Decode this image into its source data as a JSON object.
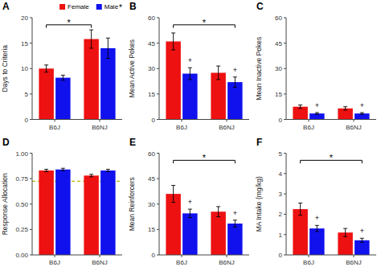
{
  "chart_data": [
    {
      "type": "bar",
      "title": "A",
      "y_label": "Days to Criteria",
      "categories": [
        "B6J",
        "B6NJ"
      ],
      "series": [
        {
          "name": "Female",
          "color": "#ee1111",
          "values": [
            10.0,
            15.8
          ],
          "errors": [
            0.7,
            1.8
          ]
        },
        {
          "name": "Male",
          "color": "#1111ee",
          "values": [
            8.2,
            14.0
          ],
          "errors": [
            0.5,
            2.0
          ]
        }
      ],
      "ylim": [
        0,
        20
      ],
      "yticks": [
        0,
        5,
        10,
        15,
        20
      ],
      "legend": "upper right",
      "annotations": [
        {
          "kind": "bracket",
          "text": "*",
          "from": [
            "B6J",
            "Female"
          ],
          "to": [
            "B6NJ",
            "Female"
          ]
        },
        {
          "kind": "legend_mark",
          "text": "*",
          "series": "Male"
        }
      ]
    },
    {
      "type": "bar",
      "title": "B",
      "y_label": "Mean Active Pokes",
      "categories": [
        "B6J",
        "B6NJ"
      ],
      "series": [
        {
          "name": "Female",
          "color": "#ee1111",
          "values": [
            46.0,
            27.5
          ],
          "errors": [
            5.0,
            4.0
          ]
        },
        {
          "name": "Male",
          "color": "#1111ee",
          "values": [
            27.0,
            22.0
          ],
          "errors": [
            3.5,
            3.0
          ]
        }
      ],
      "ylim": [
        0,
        60
      ],
      "yticks": [
        0,
        15,
        30,
        45,
        60
      ],
      "annotations": [
        {
          "kind": "bracket",
          "text": "*",
          "from": [
            "B6J",
            "Female"
          ],
          "to": [
            "B6NJ",
            "Male"
          ]
        },
        {
          "kind": "marker",
          "text": "+",
          "at": [
            "B6J",
            "Male"
          ]
        },
        {
          "kind": "marker",
          "text": "+",
          "at": [
            "B6NJ",
            "Male"
          ]
        }
      ]
    },
    {
      "type": "bar",
      "title": "C",
      "y_label": "Mean Inactive Pokes",
      "categories": [
        "B6J",
        "B6NJ"
      ],
      "series": [
        {
          "name": "Female",
          "color": "#ee1111",
          "values": [
            7.5,
            6.5
          ],
          "errors": [
            1.0,
            1.0
          ]
        },
        {
          "name": "Male",
          "color": "#1111ee",
          "values": [
            3.5,
            3.5
          ],
          "errors": [
            0.5,
            0.5
          ]
        }
      ],
      "ylim": [
        0,
        60
      ],
      "yticks": [
        0,
        15,
        30,
        45,
        60
      ],
      "annotations": [
        {
          "kind": "marker",
          "text": "+",
          "at": [
            "B6J",
            "Male"
          ]
        },
        {
          "kind": "marker",
          "text": "+",
          "at": [
            "B6NJ",
            "Male"
          ]
        }
      ]
    },
    {
      "type": "bar",
      "title": "D",
      "y_label": "Response Allocation",
      "categories": [
        "B6J",
        "B6NJ"
      ],
      "series": [
        {
          "name": "Female",
          "color": "#ee1111",
          "values": [
            0.83,
            0.78
          ],
          "errors": [
            0.012,
            0.012
          ]
        },
        {
          "name": "Male",
          "color": "#1111ee",
          "values": [
            0.84,
            0.83
          ],
          "errors": [
            0.012,
            0.012
          ]
        }
      ],
      "ylim": [
        0.0,
        1.0
      ],
      "yticks": [
        {
          "value": 0.0,
          "label": "0.00"
        },
        0.25,
        {
          "value": 0.5,
          "label": "0.50"
        },
        0.75,
        {
          "value": 1.0,
          "label": "1.00"
        }
      ],
      "annotations": [
        {
          "kind": "hline",
          "value": 0.725,
          "color": "#b8b800",
          "line_style": "dashed"
        }
      ]
    },
    {
      "type": "bar",
      "title": "E",
      "y_label": "Mean Reinforcers",
      "categories": [
        "B6J",
        "B6NJ"
      ],
      "series": [
        {
          "name": "Female",
          "color": "#ee1111",
          "values": [
            36.0,
            25.5
          ],
          "errors": [
            5.0,
            3.0
          ]
        },
        {
          "name": "Male",
          "color": "#1111ee",
          "values": [
            24.5,
            18.5
          ],
          "errors": [
            2.5,
            2.0
          ]
        }
      ],
      "ylim": [
        0,
        60
      ],
      "yticks": [
        0,
        15,
        30,
        45,
        60
      ],
      "annotations": [
        {
          "kind": "bracket",
          "text": "*",
          "from": [
            "B6J",
            "Female"
          ],
          "to": [
            "B6NJ",
            "Male"
          ]
        },
        {
          "kind": "marker",
          "text": "+",
          "at": [
            "B6J",
            "Male"
          ]
        },
        {
          "kind": "marker",
          "text": "+",
          "at": [
            "B6NJ",
            "Male"
          ]
        }
      ]
    },
    {
      "type": "bar",
      "title": "F",
      "y_label": "MA Intake (mg/kg)",
      "categories": [
        "B6J",
        "B6NJ"
      ],
      "series": [
        {
          "name": "Female",
          "color": "#ee1111",
          "values": [
            2.25,
            1.1
          ],
          "errors": [
            0.3,
            0.2
          ]
        },
        {
          "name": "Male",
          "color": "#1111ee",
          "values": [
            1.3,
            0.72
          ],
          "errors": [
            0.15,
            0.1
          ]
        }
      ],
      "ylim": [
        0,
        5
      ],
      "yticks": [
        0,
        1,
        2,
        3,
        4,
        5
      ],
      "annotations": [
        {
          "kind": "bracket",
          "text": "*",
          "from": [
            "B6J",
            "Female"
          ],
          "to": [
            "B6NJ",
            "Male"
          ]
        },
        {
          "kind": "marker",
          "text": "+",
          "at": [
            "B6J",
            "Male"
          ]
        },
        {
          "kind": "marker",
          "text": "+",
          "at": [
            "B6NJ",
            "Male"
          ]
        }
      ]
    }
  ]
}
